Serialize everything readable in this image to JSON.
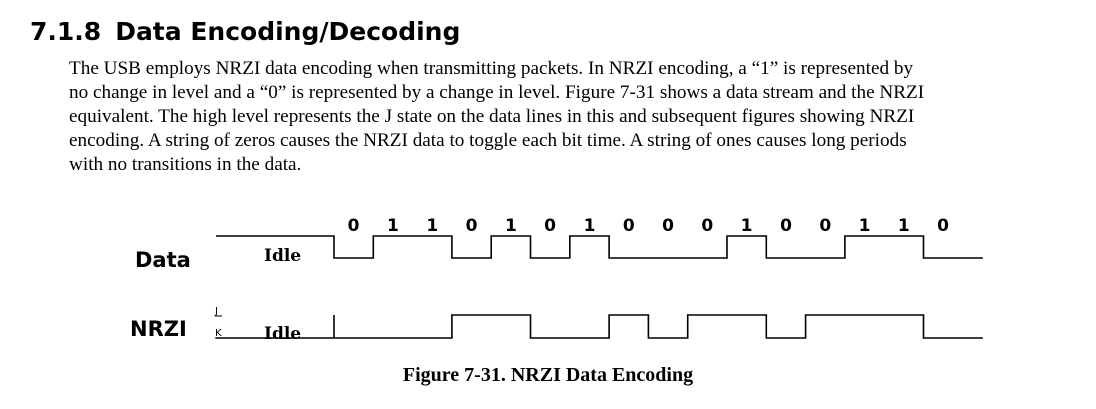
{
  "section": {
    "number": "7.1.8",
    "title": "Data Encoding/Decoding"
  },
  "paragraph": {
    "lines": [
      "The USB employs NRZI data encoding when transmitting packets.  In NRZI encoding, a “1” is represented by",
      "no change in level and a “0” is represented by a change in level.  Figure 7-31 shows a data stream and the NRZI",
      "equivalent.  The high level represents the J state on the data lines in this and subsequent figures showing NRZI",
      "encoding.  A string of zeros causes the NRZI data to toggle each bit time.  A string of ones causes long periods",
      "with no transitions in the data."
    ]
  },
  "figure": {
    "data_label": "Data",
    "nrzi_label": "NRZI",
    "idle_label": "Idle",
    "j_label": "J",
    "k_label": "K",
    "bits": [
      "0",
      "1",
      "1",
      "0",
      "1",
      "0",
      "1",
      "0",
      "0",
      "0",
      "1",
      "0",
      "0",
      "1",
      "1",
      "0"
    ],
    "caption": "Figure 7-31.  NRZI Data Encoding"
  }
}
